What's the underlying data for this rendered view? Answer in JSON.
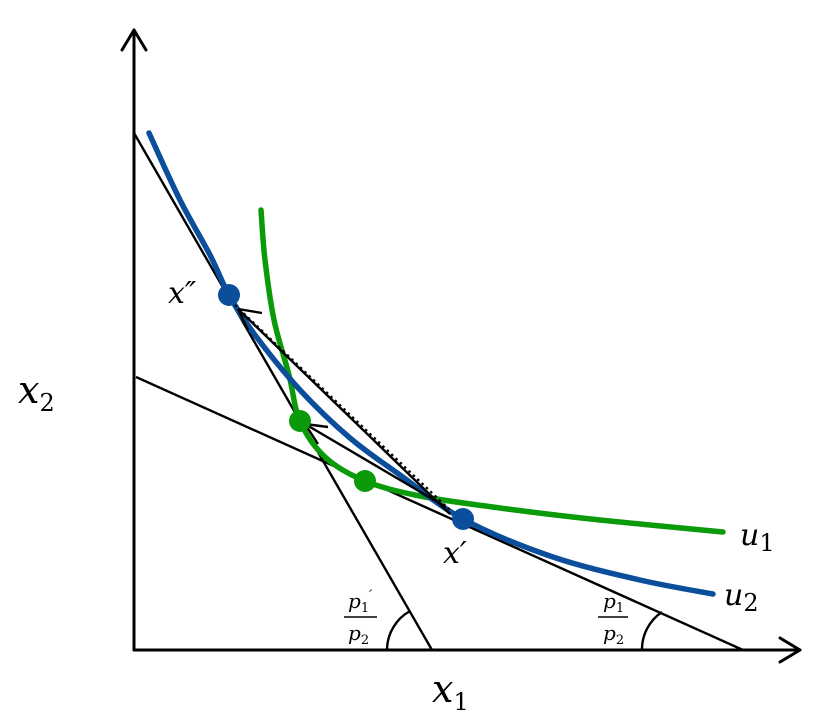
{
  "axes": {
    "x_label": "x",
    "x_label_sub": "1",
    "y_label": "x",
    "y_label_sub": "2"
  },
  "curves": {
    "u1": {
      "label": "u",
      "label_sub": "1"
    },
    "u2": {
      "label": "u",
      "label_sub": "2"
    }
  },
  "points": {
    "x_double_prime": {
      "label": "x″"
    },
    "x_prime": {
      "label": "x′"
    }
  },
  "slopes": {
    "new_price": {
      "num": "p",
      "num_sub": "1",
      "num_prime": "′",
      "den": "p",
      "den_sub": "2"
    },
    "old_price": {
      "num": "p",
      "num_sub": "1",
      "den": "p",
      "den_sub": "2"
    }
  },
  "colors": {
    "u1": "#0a9a0a",
    "u2": "#0b4f9c",
    "axis": "#000000"
  }
}
